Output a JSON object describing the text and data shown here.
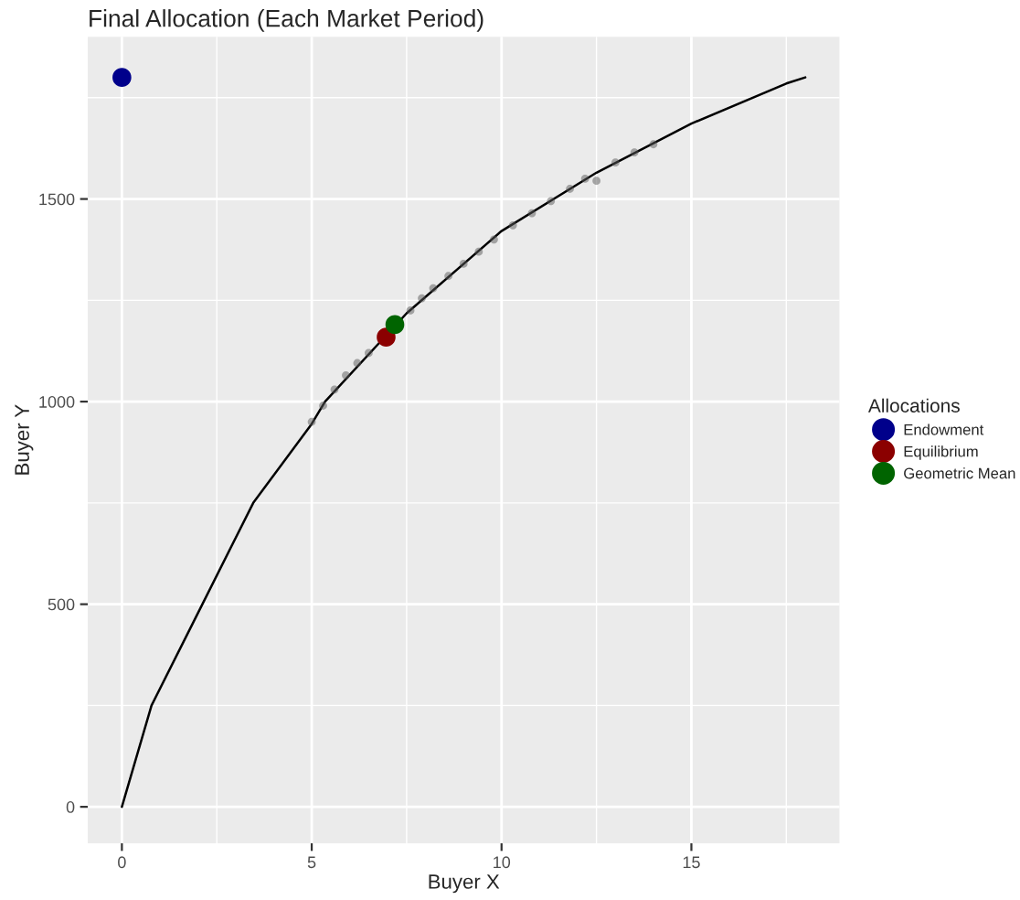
{
  "chart_data": {
    "type": "scatter",
    "title": "Final Allocation (Each Market Period)",
    "xlabel": "Buyer X",
    "ylabel": "Buyer Y",
    "legend_title": "Allocations",
    "legend": "right",
    "grid": true,
    "marker": "circle",
    "xlim": [
      -0.9,
      18.9
    ],
    "ylim": [
      -90,
      1900
    ],
    "xticks": [
      0,
      5,
      10,
      15
    ],
    "yticks": [
      0,
      500,
      1000,
      1500
    ],
    "series": [
      {
        "type": "line",
        "marker": "none",
        "color": "#000000",
        "x": [
          0,
          0.78,
          2.12,
          3.46,
          5,
          5.35,
          7.5,
          10,
          12.5,
          15,
          17.5,
          18
        ],
        "values": [
          0,
          250,
          500,
          750,
          945,
          1000,
          1218,
          1421,
          1565,
          1686,
          1785,
          1800
        ]
      },
      {
        "color": "#595959",
        "x": [
          5.0,
          5.3,
          5.6,
          5.9,
          6.2,
          6.5,
          7.6,
          7.9,
          8.2,
          8.6,
          9.0,
          9.4,
          9.8,
          10.3,
          10.8,
          11.3,
          11.8,
          12.2,
          12.5,
          13.0,
          13.5,
          14.0
        ],
        "values": [
          950,
          990,
          1030,
          1065,
          1095,
          1120,
          1225,
          1255,
          1280,
          1310,
          1340,
          1370,
          1400,
          1435,
          1465,
          1495,
          1525,
          1550,
          1545,
          1590,
          1615,
          1635
        ]
      },
      {
        "name": "Endowment",
        "color": "#00008b",
        "x": [
          0
        ],
        "values": [
          1800
        ]
      },
      {
        "name": "Equilibrium",
        "color": "#8b0000",
        "x": [
          6.96
        ],
        "values": [
          1159
        ]
      },
      {
        "name": "Geometric Mean",
        "color": "#006400",
        "x": [
          7.19
        ],
        "values": [
          1190
        ]
      }
    ]
  }
}
